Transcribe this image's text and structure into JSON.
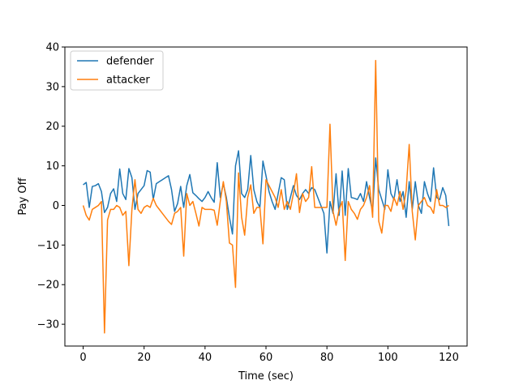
{
  "chart_data": {
    "type": "line",
    "title": "",
    "xlabel": "Time (sec)",
    "ylabel": "Pay Off",
    "xlim": [
      -6,
      126
    ],
    "ylim": [
      -35.5,
      40
    ],
    "xticks": [
      0,
      20,
      40,
      60,
      80,
      100,
      120
    ],
    "yticks": [
      -30,
      -20,
      -10,
      0,
      10,
      20,
      30,
      40
    ],
    "ytick_labels": [
      "−30",
      "−20",
      "−10",
      "0",
      "10",
      "20",
      "30",
      "40"
    ],
    "grid": false,
    "legend_position": "top-left",
    "x": [
      0,
      1,
      2,
      3,
      4,
      5,
      6,
      7,
      8,
      9,
      10,
      11,
      12,
      13,
      14,
      15,
      16,
      17,
      18,
      19,
      20,
      21,
      22,
      23,
      24,
      25,
      26,
      27,
      28,
      29,
      30,
      31,
      32,
      33,
      34,
      35,
      36,
      37,
      38,
      39,
      40,
      41,
      42,
      43,
      44,
      45,
      46,
      47,
      48,
      49,
      50,
      51,
      52,
      53,
      54,
      55,
      56,
      57,
      58,
      59,
      60,
      61,
      62,
      63,
      64,
      65,
      66,
      67,
      68,
      69,
      70,
      71,
      72,
      73,
      74,
      75,
      76,
      77,
      78,
      79,
      80,
      81,
      82,
      83,
      84,
      85,
      86,
      87,
      88,
      89,
      90,
      91,
      92,
      93,
      94,
      95,
      96,
      97,
      98,
      99,
      100,
      101,
      102,
      103,
      104,
      105,
      106,
      107,
      108,
      109,
      110,
      111,
      112,
      113,
      114,
      115,
      116,
      117,
      118,
      119,
      120
    ],
    "series": [
      {
        "name": "defender",
        "color": "#1f77b4",
        "values": [
          5.2,
          5.8,
          -0.5,
          4.8,
          5.0,
          5.5,
          3.5,
          -1.8,
          -0.5,
          3.0,
          4.2,
          1.0,
          9.2,
          3.0,
          1.5,
          9.3,
          7.0,
          -1.0,
          3.0,
          4.0,
          5.0,
          8.8,
          8.4,
          1.5,
          5.5,
          6.0,
          6.5,
          7.0,
          7.5,
          4.0,
          -1.5,
          0.5,
          4.8,
          -0.5,
          5.0,
          7.8,
          3.2,
          2.5,
          1.7,
          1.0,
          2.0,
          3.5,
          2.0,
          0.8,
          10.8,
          2.0,
          5.5,
          2.0,
          -3.0,
          -7.2,
          10.0,
          13.8,
          3.0,
          2.0,
          4.0,
          12.6,
          4.0,
          1.0,
          -0.5,
          11.2,
          7.5,
          3.5,
          1.0,
          -1.0,
          3.0,
          7.0,
          6.5,
          -1.0,
          2.0,
          5.0,
          2.5,
          1.5,
          3.0,
          4.0,
          3.0,
          4.5,
          4.0,
          2.0,
          0.0,
          -2.0,
          -12.0,
          1.0,
          -2.0,
          8.0,
          -2.5,
          8.7,
          -2.5,
          9.3,
          2.0,
          1.8,
          1.5,
          3.0,
          1.0,
          6.0,
          2.0,
          -1.5,
          12.0,
          4.0,
          1.5,
          -1.0,
          9.0,
          3.0,
          1.5,
          6.5,
          1.0,
          3.5,
          -3.0,
          6.0,
          -1.0,
          6.0,
          0.0,
          -2.0,
          6.0,
          3.0,
          1.0,
          9.5,
          2.0,
          1.5,
          4.5,
          2.5,
          -5.2
        ]
      },
      {
        "name": "attacker",
        "color": "#ff7f0e",
        "values": [
          0.0,
          -2.5,
          -3.7,
          -1.0,
          -0.5,
          0.0,
          1.0,
          -32.2,
          -3.7,
          -1.0,
          -1.0,
          0.0,
          -0.5,
          -2.5,
          -1.5,
          -15.2,
          -1.0,
          6.5,
          -1.0,
          -2.0,
          -0.5,
          0.0,
          -0.5,
          1.8,
          0.0,
          -1.0,
          -2.0,
          -3.0,
          -4.0,
          -4.8,
          -2.0,
          -1.5,
          -0.5,
          -12.8,
          3.0,
          0.0,
          1.0,
          -2.0,
          -5.2,
          -0.5,
          -1.0,
          -1.0,
          -1.0,
          -1.2,
          -5.0,
          1.0,
          6.0,
          1.0,
          -9.5,
          -10.0,
          -20.7,
          8.2,
          -3.0,
          -7.5,
          2.0,
          5.2,
          -2.0,
          -0.5,
          -0.5,
          -9.7,
          6.5,
          5.0,
          3.5,
          2.0,
          -0.5,
          4.0,
          -1.0,
          1.0,
          -1.0,
          3.0,
          8.0,
          -1.8,
          3.0,
          1.0,
          2.0,
          9.8,
          -0.5,
          -0.5,
          -0.5,
          -0.5,
          -0.5,
          20.5,
          -1.5,
          -5.0,
          -1.0,
          1.0,
          -13.9,
          1.0,
          -1.0,
          -2.0,
          -3.5,
          -1.0,
          0.0,
          2.0,
          5.0,
          -3.0,
          36.6,
          -4.0,
          -7.0,
          0.0,
          0.0,
          -1.5,
          2.0,
          0.0,
          3.5,
          -1.0,
          3.8,
          15.4,
          -1.5,
          -8.7,
          0.0,
          1.0,
          2.0,
          0.0,
          -0.5,
          -2.0,
          4.0,
          0.0,
          0.0,
          -0.5,
          0.0
        ]
      }
    ]
  }
}
